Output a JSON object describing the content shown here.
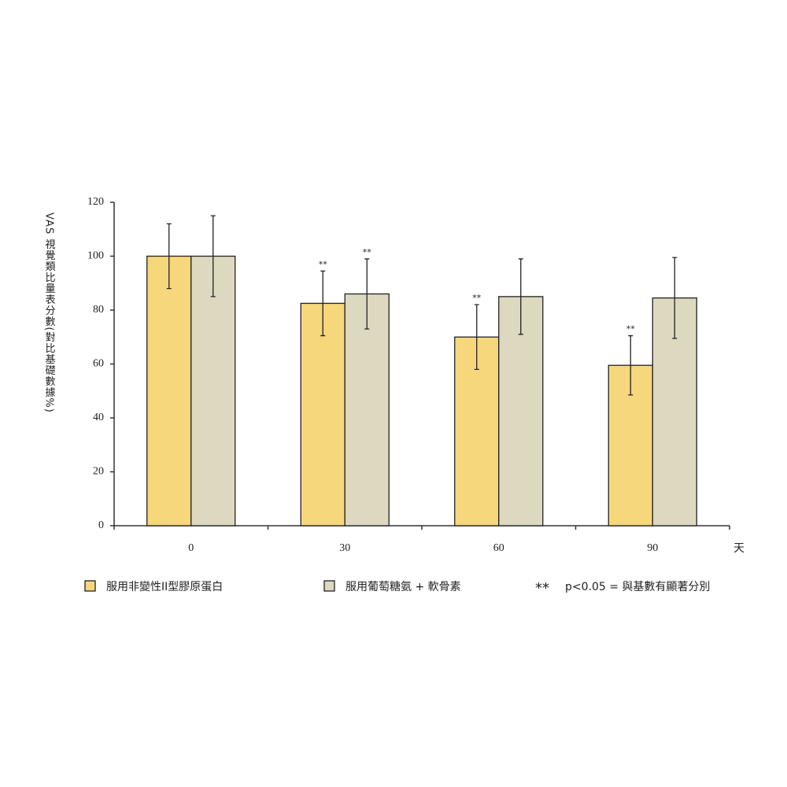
{
  "chart_data": {
    "type": "bar",
    "y_label": "VAS 視覺類比量表分數(對比基礎數據%)",
    "x_label": "天",
    "categories": [
      "0",
      "30",
      "60",
      "90"
    ],
    "series": [
      {
        "name": "服用非變性II型膠原蛋白",
        "color": "#f7d77c",
        "values": [
          100,
          82.5,
          70,
          59.5
        ],
        "errors": [
          12,
          12,
          12,
          11
        ],
        "marks": [
          null,
          "**",
          "**",
          "**"
        ]
      },
      {
        "name": "服用葡萄糖氨 + 軟骨素",
        "color": "#ddd8c0",
        "values": [
          100,
          86,
          85,
          84.5
        ],
        "errors": [
          15,
          13,
          14,
          15
        ],
        "marks": [
          null,
          "**",
          null,
          null
        ]
      }
    ],
    "legend_note": {
      "symbol": "**",
      "text": "p<0.05 = 與基數有顯著分別"
    },
    "ylim": [
      0,
      120
    ],
    "yticks": [
      0,
      20,
      40,
      60,
      80,
      100,
      120
    ]
  }
}
